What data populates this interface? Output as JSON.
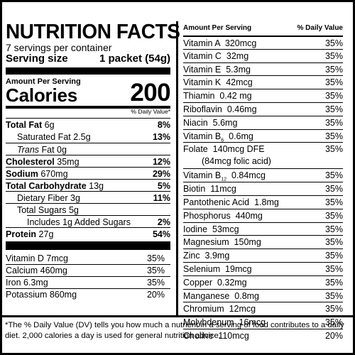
{
  "header": {
    "title": "NUTRITION FACTS",
    "servings_per_container": "7 servings per container",
    "serving_size_label": "Serving size",
    "serving_size_value": "1 packet (54g)"
  },
  "calories": {
    "amount_per_serving": "Amount Per Serving",
    "label": "Calories",
    "value": "200",
    "dv_header": "% Daily Value*"
  },
  "nutrients": [
    {
      "name": "Total Fat",
      "amount": "6g",
      "dv": "8%"
    },
    {
      "name": "Saturated Fat",
      "amount": "2.5g",
      "dv": "13%"
    },
    {
      "name": "Trans",
      "amount": "Fat 0g",
      "dv": ""
    },
    {
      "name": "Cholesterol",
      "amount": "35mg",
      "dv": "12%"
    },
    {
      "name": "Sodium",
      "amount": "670mg",
      "dv": "29%"
    },
    {
      "name": "Total Carbohydrate",
      "amount": "13g",
      "dv": "5%"
    },
    {
      "name": "Dietary Fiber",
      "amount": "3g",
      "dv": "11%"
    },
    {
      "name": "Total Sugars",
      "amount": "5g",
      "dv": ""
    },
    {
      "name": "Includes 1g Added Sugars",
      "amount": "",
      "dv": "2%"
    },
    {
      "name": "Protein",
      "amount": "27g",
      "dv": "54%"
    }
  ],
  "left_vitamins": [
    {
      "name": "Vitamin D 7mcg",
      "dv": "35%"
    },
    {
      "name": "Calcium 460mg",
      "dv": "35%"
    },
    {
      "name": "Iron 6.3mg",
      "dv": "35%"
    },
    {
      "name": "Potassium 860mg",
      "dv": "20%"
    }
  ],
  "right_header": {
    "left": "Amount Per Serving",
    "right": "% Daily Value"
  },
  "right_vitamins": [
    {
      "name": "Vitamin A  320mcg",
      "dv": "35%"
    },
    {
      "name": "Vitamin C  32mg",
      "dv": "35%"
    },
    {
      "name": "Vitamin E  5.3mg",
      "dv": "35%"
    },
    {
      "name": "Vitamin K  42mcg",
      "dv": "35%"
    },
    {
      "name": "Thiamin  0.42 mg",
      "dv": "35%"
    },
    {
      "name": "Riboflavin  0.46mg",
      "dv": "35%"
    },
    {
      "name": "Niacin  5.6mg",
      "dv": "35%"
    },
    {
      "name": "Vitamin B",
      "sub": "6",
      "amount": "  0.6mg",
      "dv": "35%"
    },
    {
      "name": "Folate  140mcg DFE",
      "line2": "(84mcg folic acid)",
      "dv": "35%"
    },
    {
      "name": "Vitamin B",
      "sub": "12",
      "amount": "  0.84mcg",
      "dv": "35%"
    },
    {
      "name": "Biotin  11mcg",
      "dv": "35%"
    },
    {
      "name": "Pantothenic Acid  1.8mg",
      "dv": "35%"
    },
    {
      "name": "Phosphorus  440mg",
      "dv": "35%"
    },
    {
      "name": "Iodine  53mcg",
      "dv": "35%"
    },
    {
      "name": "Magnesium  150mg",
      "dv": "35%"
    },
    {
      "name": "Zinc  3.9mg",
      "dv": "35%"
    },
    {
      "name": "Selenium  19mcg",
      "dv": "35%"
    },
    {
      "name": "Copper  0.32mg",
      "dv": "35%"
    },
    {
      "name": "Manganese  0.8mg",
      "dv": "35%"
    },
    {
      "name": "Chromium  12mcg",
      "dv": "35%"
    },
    {
      "name": "Molybdenum  16mcg",
      "dv": "35%"
    },
    {
      "name": "Choline  110mcg",
      "dv": "20%"
    }
  ],
  "footnote": "*The % Daily Value (DV) tells you how much a nutrient in a serving of food contributes to a daily diet. 2,000 calories a day is used for general nutrition advice."
}
